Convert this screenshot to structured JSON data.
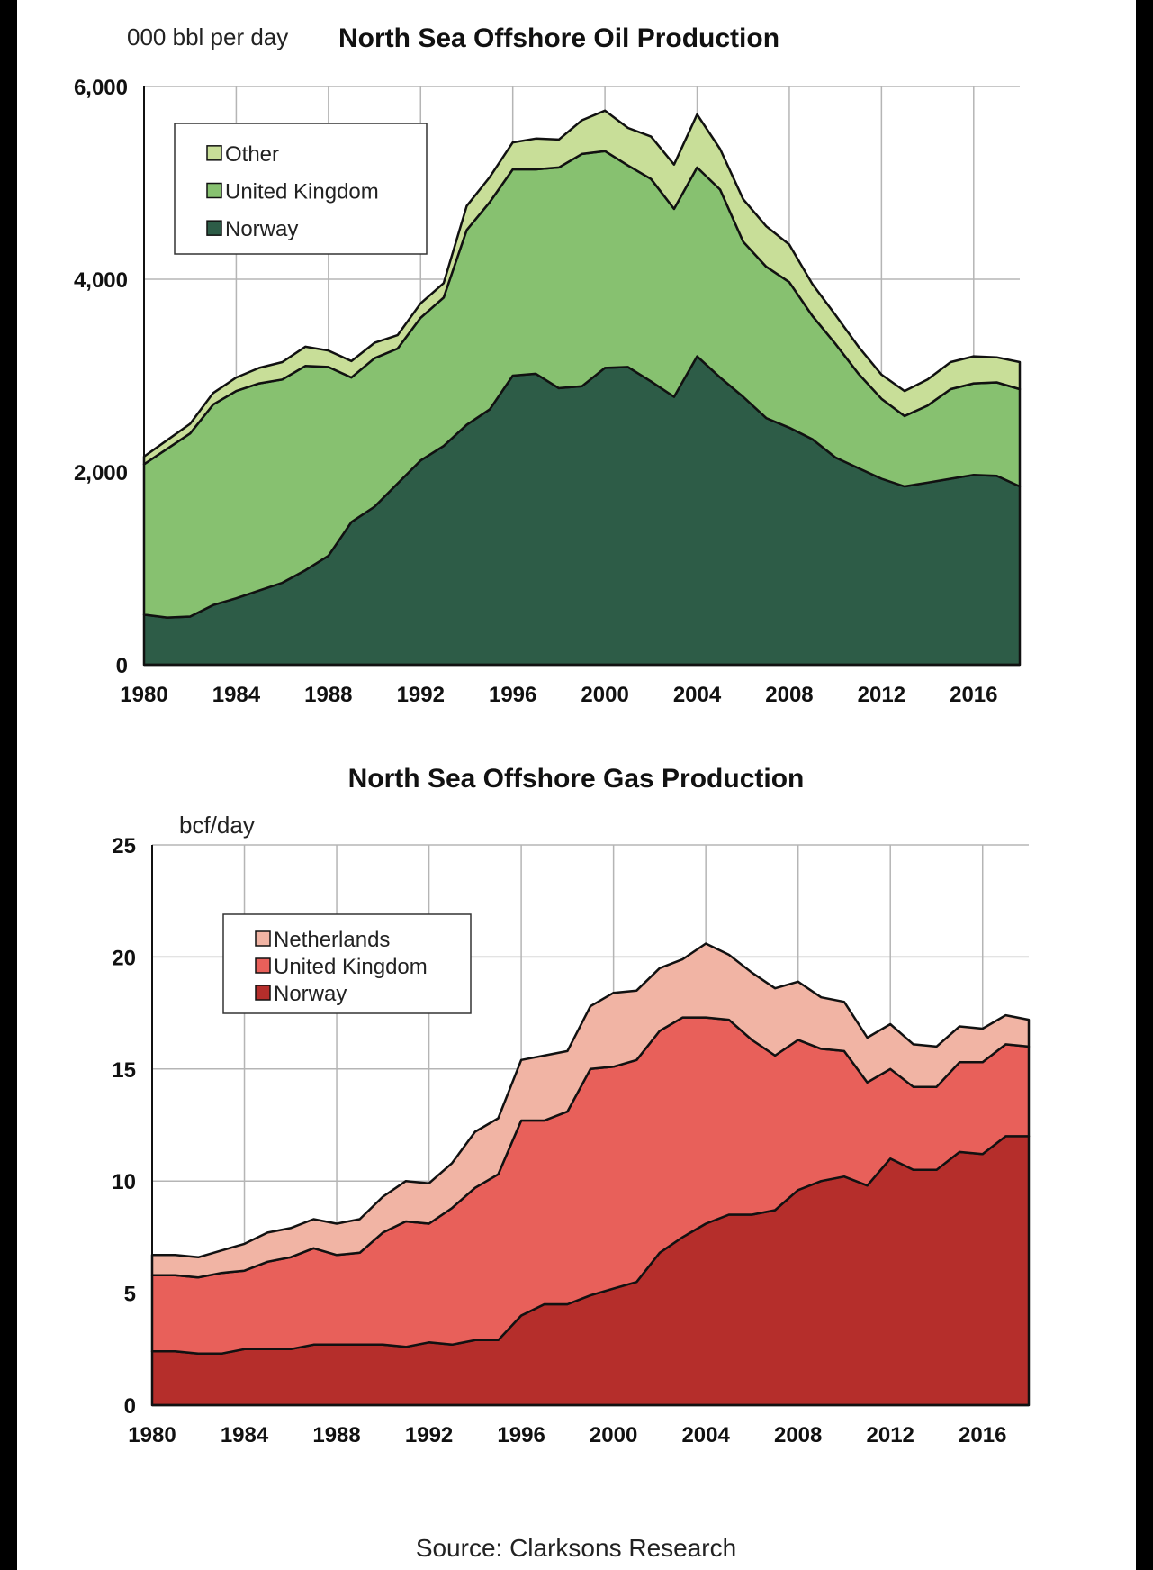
{
  "source": "Source: Clarksons Research",
  "chart_data": [
    {
      "type": "area",
      "stacked": true,
      "title": "North Sea Offshore Oil Production",
      "ylabel": "000 bbl per day",
      "xlabel": "",
      "ylim": [
        0,
        6000
      ],
      "xlim": [
        1980,
        2018
      ],
      "yticks": [
        0,
        2000,
        4000,
        6000
      ],
      "ytick_labels": [
        "0",
        "2,000",
        "4,000",
        "6,000"
      ],
      "xticks": [
        1980,
        1984,
        1988,
        1992,
        1996,
        2000,
        2004,
        2008,
        2012,
        2016
      ],
      "xtick_labels": [
        "1980",
        "1984",
        "1988",
        "1992",
        "1996",
        "2000",
        "2004",
        "2008",
        "2012",
        "2016"
      ],
      "grid": true,
      "legend_position": "top-left",
      "legend_order": [
        "Other",
        "United Kingdom",
        "Norway"
      ],
      "x": [
        1980,
        1981,
        1982,
        1983,
        1984,
        1985,
        1986,
        1987,
        1988,
        1989,
        1990,
        1991,
        1992,
        1993,
        1994,
        1995,
        1996,
        1997,
        1998,
        1999,
        2000,
        2001,
        2002,
        2003,
        2004,
        2005,
        2006,
        2007,
        2008,
        2009,
        2010,
        2011,
        2012,
        2013,
        2014,
        2015,
        2016,
        2017,
        2018
      ],
      "series": [
        {
          "name": "Norway",
          "color": "#2d5c47",
          "values": [
            520,
            490,
            500,
            620,
            690,
            770,
            850,
            980,
            1130,
            1480,
            1640,
            1880,
            2120,
            2270,
            2490,
            2650,
            3000,
            3020,
            2870,
            2890,
            3080,
            3090,
            2940,
            2780,
            3200,
            2980,
            2780,
            2560,
            2460,
            2340,
            2150,
            2040,
            1930,
            1850,
            1890,
            1930,
            1970,
            1960,
            1850
          ]
        },
        {
          "name": "United Kingdom",
          "color": "#87c170",
          "values": [
            1560,
            1750,
            1900,
            2080,
            2150,
            2150,
            2110,
            2120,
            1960,
            1500,
            1540,
            1400,
            1480,
            1540,
            2020,
            2150,
            2140,
            2120,
            2290,
            2410,
            2250,
            2090,
            2100,
            1950,
            1960,
            1950,
            1610,
            1570,
            1510,
            1280,
            1180,
            980,
            830,
            730,
            800,
            930,
            950,
            970,
            1010
          ]
        },
        {
          "name": "Other",
          "color": "#c8de98",
          "values": [
            80,
            90,
            100,
            120,
            140,
            160,
            180,
            200,
            170,
            170,
            160,
            140,
            150,
            150,
            250,
            260,
            280,
            320,
            290,
            350,
            420,
            390,
            440,
            460,
            550,
            420,
            440,
            420,
            390,
            330,
            300,
            280,
            250,
            260,
            270,
            280,
            280,
            260,
            280
          ]
        }
      ]
    },
    {
      "type": "area",
      "stacked": true,
      "title": "North Sea Offshore Gas Production",
      "ylabel": "bcf/day",
      "xlabel": "",
      "ylim": [
        0,
        25
      ],
      "xlim": [
        1980,
        2018
      ],
      "yticks": [
        0,
        5,
        10,
        15,
        20,
        25
      ],
      "ytick_labels": [
        "0",
        "5",
        "10",
        "15",
        "20",
        "25"
      ],
      "xticks": [
        1980,
        1984,
        1988,
        1992,
        1996,
        2000,
        2004,
        2008,
        2012,
        2016
      ],
      "xtick_labels": [
        "1980",
        "1984",
        "1988",
        "1992",
        "1996",
        "2000",
        "2004",
        "2008",
        "2012",
        "2016"
      ],
      "grid": true,
      "legend_position": "top-left",
      "legend_order": [
        "Netherlands",
        "United Kingdom",
        "Norway"
      ],
      "x": [
        1980,
        1981,
        1982,
        1983,
        1984,
        1985,
        1986,
        1987,
        1988,
        1989,
        1990,
        1991,
        1992,
        1993,
        1994,
        1995,
        1996,
        1997,
        1998,
        1999,
        2000,
        2001,
        2002,
        2003,
        2004,
        2005,
        2006,
        2007,
        2008,
        2009,
        2010,
        2011,
        2012,
        2013,
        2014,
        2015,
        2016,
        2017,
        2018
      ],
      "series": [
        {
          "name": "Norway",
          "color": "#b52e2b",
          "values": [
            2.4,
            2.4,
            2.3,
            2.3,
            2.5,
            2.5,
            2.5,
            2.7,
            2.7,
            2.7,
            2.7,
            2.6,
            2.8,
            2.7,
            2.9,
            2.9,
            4.0,
            4.5,
            4.5,
            4.9,
            5.2,
            5.5,
            6.8,
            7.5,
            8.1,
            8.5,
            8.5,
            8.7,
            9.6,
            10.0,
            10.2,
            9.8,
            11.0,
            10.5,
            10.5,
            11.3,
            11.2,
            12.0,
            12.0
          ]
        },
        {
          "name": "United Kingdom",
          "color": "#e8605a",
          "values": [
            3.4,
            3.4,
            3.4,
            3.6,
            3.5,
            3.9,
            4.1,
            4.3,
            4.0,
            4.1,
            5.0,
            5.6,
            5.3,
            6.1,
            6.8,
            7.4,
            8.7,
            8.2,
            8.6,
            10.1,
            9.9,
            9.9,
            9.9,
            9.8,
            9.2,
            8.7,
            7.8,
            6.9,
            6.7,
            5.9,
            5.6,
            4.6,
            4.0,
            3.7,
            3.7,
            4.0,
            4.1,
            4.1,
            4.0
          ]
        },
        {
          "name": "Netherlands",
          "color": "#f1b4a4",
          "values": [
            0.9,
            0.9,
            0.9,
            1.0,
            1.2,
            1.3,
            1.3,
            1.3,
            1.4,
            1.5,
            1.6,
            1.8,
            1.8,
            2.0,
            2.5,
            2.5,
            2.7,
            2.9,
            2.7,
            2.8,
            3.3,
            3.1,
            2.8,
            2.6,
            3.3,
            2.9,
            3.0,
            3.0,
            2.6,
            2.3,
            2.2,
            2.0,
            2.0,
            1.9,
            1.8,
            1.6,
            1.5,
            1.3,
            1.2
          ]
        }
      ]
    }
  ]
}
